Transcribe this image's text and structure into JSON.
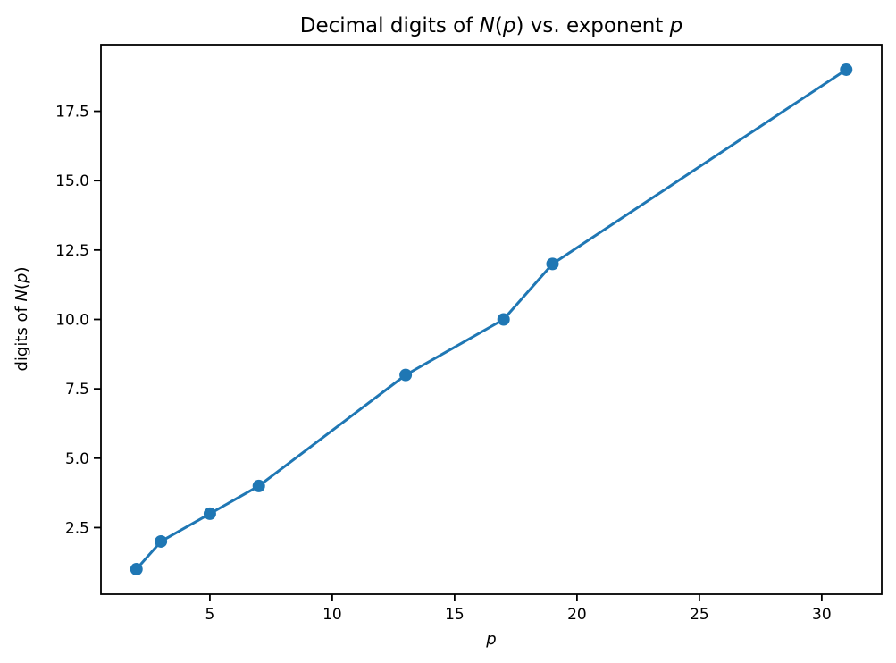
{
  "figure": {
    "background": "#ffffff"
  },
  "chart_data": {
    "type": "line",
    "title": "Decimal digits of N(p) vs. exponent p",
    "title_segments": [
      {
        "text": "Decimal digits of ",
        "italic": false
      },
      {
        "text": "N",
        "italic": true
      },
      {
        "text": "(",
        "italic": false
      },
      {
        "text": "p",
        "italic": true
      },
      {
        "text": ")",
        "italic": false
      },
      {
        "text": " vs. exponent ",
        "italic": false
      },
      {
        "text": "p",
        "italic": true
      }
    ],
    "xlabel": "p",
    "xlabel_segments": [
      {
        "text": "p",
        "italic": true
      }
    ],
    "ylabel": "digits of N(p)",
    "ylabel_segments": [
      {
        "text": "digits of ",
        "italic": false
      },
      {
        "text": "N",
        "italic": true
      },
      {
        "text": "(",
        "italic": false
      },
      {
        "text": "p",
        "italic": true
      },
      {
        "text": ")",
        "italic": false
      }
    ],
    "series": [
      {
        "name": "digits of N(p)",
        "x": [
          2,
          3,
          5,
          7,
          13,
          17,
          19,
          31
        ],
        "y": [
          1,
          2,
          3,
          4,
          8,
          10,
          12,
          19
        ]
      }
    ],
    "xlim": [
      0.55,
      32.45
    ],
    "ylim": [
      0.1,
      19.9
    ],
    "xticks": [
      {
        "v": 5,
        "label": "5"
      },
      {
        "v": 10,
        "label": "10"
      },
      {
        "v": 15,
        "label": "15"
      },
      {
        "v": 20,
        "label": "20"
      },
      {
        "v": 25,
        "label": "25"
      },
      {
        "v": 30,
        "label": "30"
      }
    ],
    "yticks": [
      {
        "v": 2.5,
        "label": "2.5"
      },
      {
        "v": 5.0,
        "label": "5.0"
      },
      {
        "v": 7.5,
        "label": "7.5"
      },
      {
        "v": 10.0,
        "label": "10.0"
      },
      {
        "v": 12.5,
        "label": "12.5"
      },
      {
        "v": 15.0,
        "label": "15.0"
      },
      {
        "v": 17.5,
        "label": "17.5"
      }
    ],
    "grid": false,
    "legend_position": "none",
    "line_color": "#1f77b4",
    "marker": "circle",
    "marker_color": "#1f77b4",
    "axis_color": "#000000",
    "text_color": "#000000"
  }
}
